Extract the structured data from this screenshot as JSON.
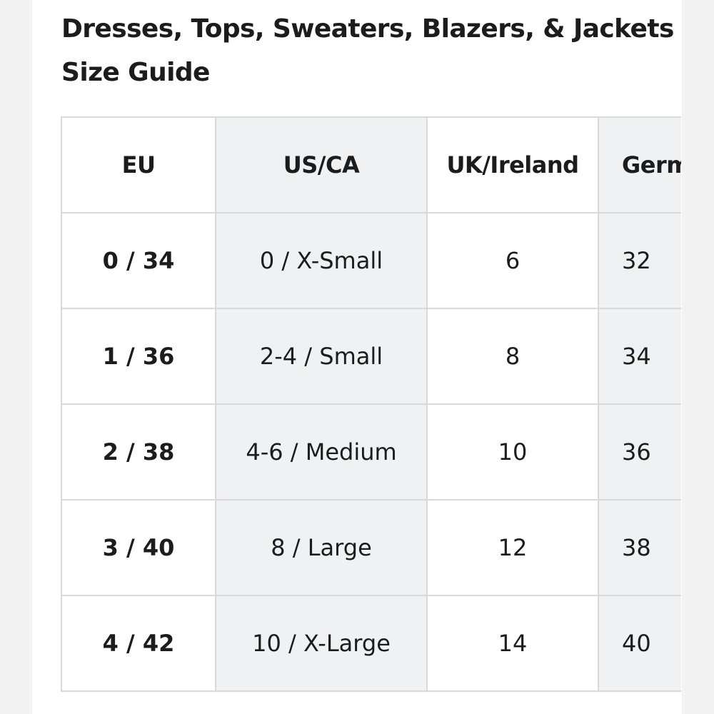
{
  "title_line1": "Dresses, Tops, Sweaters, Blazers, & Jackets",
  "title_line2": "Size Guide",
  "table": {
    "headers": [
      "EU",
      "US/CA",
      "UK/Ireland",
      "Germany"
    ],
    "rows": [
      {
        "eu": "0 / 34",
        "us": "0 / X-Small",
        "uk": "6",
        "de": "32"
      },
      {
        "eu": "1 / 36",
        "us": "2-4 / Small",
        "uk": "8",
        "de": "34"
      },
      {
        "eu": "2 / 38",
        "us": "4-6 / Medium",
        "uk": "10",
        "de": "36"
      },
      {
        "eu": "3 / 40",
        "us": "8 / Large",
        "uk": "12",
        "de": "38"
      },
      {
        "eu": "4 / 42",
        "us": "10 / X-Large",
        "uk": "14",
        "de": "40"
      }
    ]
  },
  "colors": {
    "text": "#1c1c1c",
    "shaded_column": "#eff1f3",
    "border": "#d6dadd",
    "page_background": "#ffffff",
    "outer_background": "#f3f3f4"
  }
}
